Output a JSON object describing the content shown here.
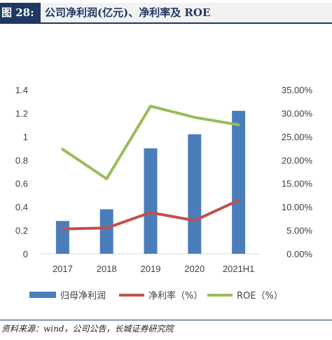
{
  "header": {
    "label": "图 28:",
    "title": "公司净利润(亿元)、净利率及 ROE"
  },
  "source": "资料来源：wind，公司公告，长城证券研究院",
  "colors": {
    "bar": "#4a7ebb",
    "net_margin": "#c0504d",
    "roe": "#9bbb59",
    "header_bg": "#1f3864"
  },
  "chart_data": {
    "type": "bar",
    "categories": [
      "2017",
      "2018",
      "2019",
      "2020",
      "2021H1"
    ],
    "y_left": {
      "min": 0,
      "max": 1.4,
      "step": 0.2,
      "ticks": [
        "0",
        "0.2",
        "0.4",
        "0.6",
        "0.8",
        "1",
        "1.2",
        "1.4"
      ]
    },
    "y_right": {
      "min": 0,
      "max": 35,
      "step": 5,
      "ticks": [
        "0.00%",
        "5.00%",
        "10.00%",
        "15.00%",
        "20.00%",
        "25.00%",
        "30.00%",
        "35.00%"
      ]
    },
    "legend_position": "bottom",
    "grid": false,
    "series": [
      {
        "name": "归母净利润",
        "type": "bar",
        "axis": "left",
        "values": [
          0.28,
          0.38,
          0.9,
          1.02,
          1.22
        ]
      },
      {
        "name": "净利率（%）",
        "type": "line",
        "axis": "right",
        "values": [
          5.3,
          5.5,
          8.8,
          7.1,
          11.4
        ]
      },
      {
        "name": "ROE（%）",
        "type": "line",
        "axis": "right",
        "values": [
          22.3,
          16.0,
          31.5,
          29.1,
          27.5
        ]
      }
    ]
  }
}
